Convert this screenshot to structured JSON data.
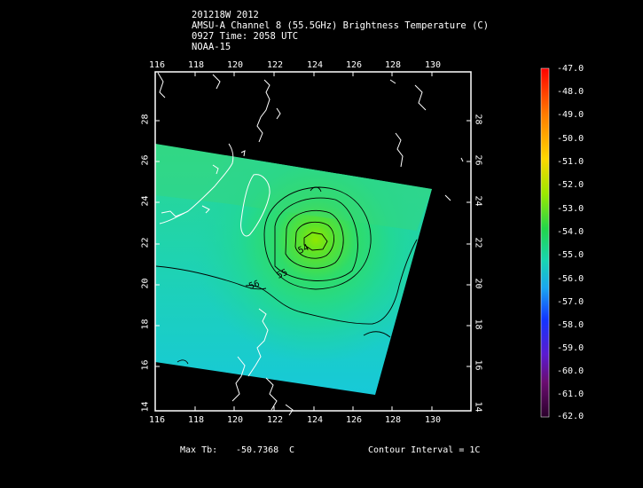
{
  "header": {
    "line1": "201218W 2012",
    "line2": "AMSU-A Channel 8 (55.5GHz) Brightness Temperature (C)",
    "line3": "0927 Time: 2058 UTC",
    "line4": "NOAA-15"
  },
  "axes": {
    "lon_ticks": [
      "116",
      "118",
      "120",
      "122",
      "124",
      "126",
      "128",
      "130"
    ],
    "lat_ticks": [
      "14",
      "16",
      "18",
      "20",
      "22",
      "24",
      "26",
      "28"
    ]
  },
  "colorbar": {
    "labels": [
      "-47.0",
      "-48.0",
      "-49.0",
      "-50.0",
      "-51.0",
      "-52.0",
      "-53.0",
      "-54.0",
      "-55.0",
      "-56.0",
      "-57.0",
      "-58.0",
      "-59.0",
      "-60.0",
      "-61.0",
      "-62.0"
    ]
  },
  "contour_labels": [
    "54",
    "55",
    "56"
  ],
  "footer": {
    "max_label": "Max Tb:",
    "max_value": "-50.7368",
    "max_unit": "C",
    "contour_interval": "Contour Interval = 1C"
  },
  "colors": {
    "background": "#000000",
    "frame": "#ffffff",
    "coastline": "#ffffff",
    "contour": "#000000"
  }
}
